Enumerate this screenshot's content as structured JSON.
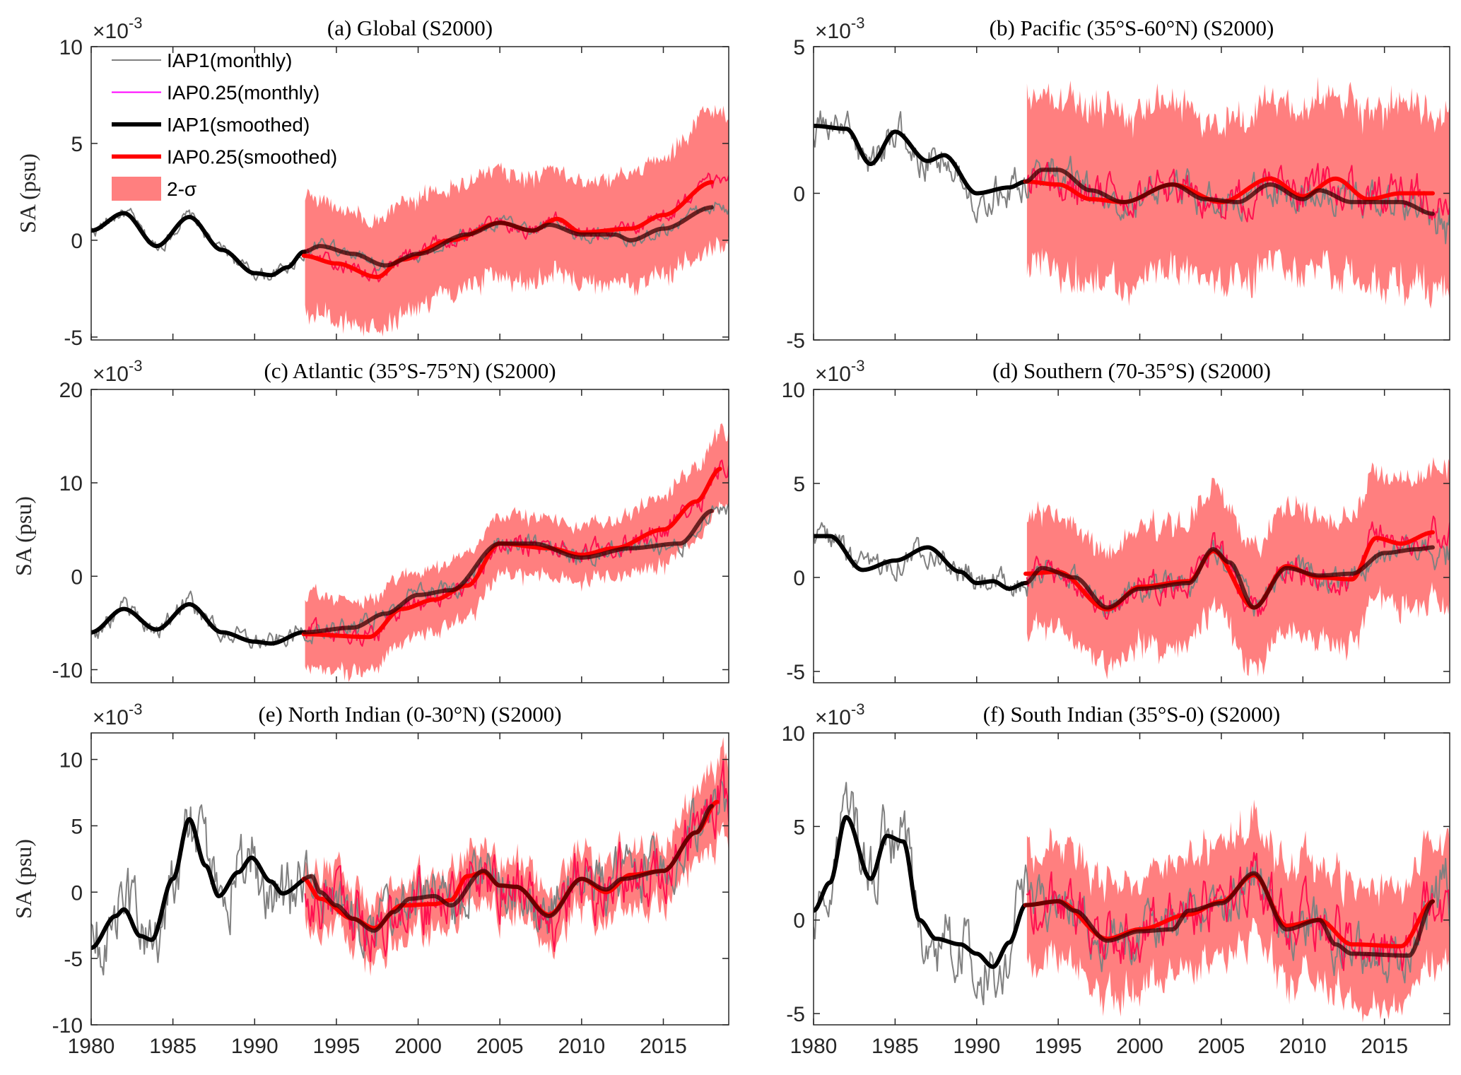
{
  "legend": {
    "entries": [
      {
        "label": "IAP1(monthly)",
        "color": "#808080",
        "kind": "thin"
      },
      {
        "label": "IAP0.25(monthly)",
        "color": "#ff00ff",
        "kind": "thin"
      },
      {
        "label": "IAP1(smoothed)",
        "color": "#000000",
        "kind": "thick"
      },
      {
        "label": "IAP0.25(smoothed)",
        "color": "#ff0000",
        "kind": "thick"
      },
      {
        "label": "2-σ",
        "color": "#ff7f7f",
        "kind": "patch"
      }
    ]
  },
  "colors": {
    "band": "#ff7f7f",
    "iap1_monthly": "#808080",
    "iap025_monthly": "#ff1050",
    "iap1_smoothed": "#000000",
    "iap025_smoothed": "#ff0000"
  },
  "chart_data": [
    {
      "type": "line",
      "title": "(a) Global (S2000)",
      "ylabel": "SA (psu)",
      "exponent": "×10",
      "exponent_power": "-3",
      "xlim": [
        1980,
        2019
      ],
      "ylim": [
        -5.15,
        10
      ],
      "yticks": [
        -5,
        0,
        5,
        10
      ],
      "xticks": [
        1980,
        1985,
        1990,
        1995,
        2000,
        2005,
        2010,
        2015
      ],
      "show_xticklabels": false,
      "legend": true,
      "noise": 0.35,
      "iap1_smoothed": [
        [
          1980,
          0.5
        ],
        [
          1982,
          1.4
        ],
        [
          1984,
          -0.3
        ],
        [
          1986,
          1.2
        ],
        [
          1988,
          -0.5
        ],
        [
          1990,
          -1.7
        ],
        [
          1991,
          -1.8
        ],
        [
          1992,
          -1.4
        ],
        [
          1993,
          -0.6
        ],
        [
          1994,
          -0.3
        ],
        [
          1996,
          -0.7
        ],
        [
          1998,
          -1.3
        ],
        [
          2000,
          -0.7
        ],
        [
          2003,
          0.3
        ],
        [
          2005,
          0.9
        ],
        [
          2007,
          0.5
        ],
        [
          2008,
          0.8
        ],
        [
          2010,
          0.3
        ],
        [
          2012,
          0.3
        ],
        [
          2013,
          0.0
        ],
        [
          2015,
          0.6
        ],
        [
          2018,
          1.7
        ]
      ],
      "iap025_smoothed": [
        [
          1993,
          -0.8
        ],
        [
          1995,
          -1.2
        ],
        [
          1997.5,
          -1.9
        ],
        [
          1999,
          -1.0
        ],
        [
          2002,
          0.0
        ],
        [
          2005,
          0.9
        ],
        [
          2007,
          0.5
        ],
        [
          2008.5,
          1.1
        ],
        [
          2010,
          0.4
        ],
        [
          2013,
          0.6
        ],
        [
          2015,
          1.3
        ],
        [
          2018,
          3.0
        ]
      ],
      "sigma": [
        [
          1993,
          3.0
        ],
        [
          2000,
          2.8
        ],
        [
          2010,
          2.6
        ],
        [
          2019,
          3.5
        ]
      ]
    },
    {
      "type": "line",
      "title": "(b) Pacific (35°S-60°N) (S2000)",
      "ylabel": "",
      "exponent": "×10",
      "exponent_power": "-3",
      "xlim": [
        1980,
        2019
      ],
      "ylim": [
        -5,
        5
      ],
      "yticks": [
        -5,
        0,
        5
      ],
      "xticks": [
        1980,
        1985,
        1990,
        1995,
        2000,
        2005,
        2010,
        2015
      ],
      "show_xticklabels": false,
      "legend": false,
      "noise": 0.6,
      "iap1_smoothed": [
        [
          1980,
          2.3
        ],
        [
          1982,
          2.2
        ],
        [
          1983.5,
          1.0
        ],
        [
          1985,
          2.1
        ],
        [
          1987,
          1.1
        ],
        [
          1988,
          1.3
        ],
        [
          1990,
          0.0
        ],
        [
          1992,
          0.2
        ],
        [
          1993,
          0.4
        ],
        [
          1994,
          0.8
        ],
        [
          1995,
          0.8
        ],
        [
          1997,
          0.1
        ],
        [
          1999,
          -0.3
        ],
        [
          2002,
          0.3
        ],
        [
          2004,
          -0.2
        ],
        [
          2006,
          -0.3
        ],
        [
          2008,
          0.3
        ],
        [
          2010,
          -0.2
        ],
        [
          2011,
          0.1
        ],
        [
          2013,
          -0.3
        ],
        [
          2016,
          -0.3
        ],
        [
          2018,
          -0.7
        ]
      ],
      "iap025_smoothed": [
        [
          1993,
          0.4
        ],
        [
          1995,
          0.3
        ],
        [
          1997,
          -0.2
        ],
        [
          1999,
          -0.3
        ],
        [
          2002,
          0.3
        ],
        [
          2005,
          -0.3
        ],
        [
          2008,
          0.5
        ],
        [
          2010,
          -0.1
        ],
        [
          2012,
          0.5
        ],
        [
          2014,
          -0.2
        ],
        [
          2016,
          0.0
        ],
        [
          2018,
          0.0
        ]
      ],
      "sigma": [
        [
          1993,
          3.0
        ],
        [
          2005,
          2.8
        ],
        [
          2019,
          3.0
        ]
      ]
    },
    {
      "type": "line",
      "title": "(c) Atlantic (35°S-75°N) (S2000)",
      "ylabel": "SA (psu)",
      "exponent": "×10",
      "exponent_power": "-3",
      "xlim": [
        1980,
        2019
      ],
      "ylim": [
        -11.4,
        20
      ],
      "yticks": [
        -10,
        0,
        10,
        20
      ],
      "xticks": [
        1980,
        1985,
        1990,
        1995,
        2000,
        2005,
        2010,
        2015
      ],
      "show_xticklabels": false,
      "legend": false,
      "noise": 1.0,
      "iap1_smoothed": [
        [
          1980,
          -6
        ],
        [
          1982,
          -3.5
        ],
        [
          1984,
          -5.7
        ],
        [
          1986,
          -3
        ],
        [
          1988,
          -6
        ],
        [
          1990,
          -7
        ],
        [
          1991,
          -7.2
        ],
        [
          1993,
          -6
        ],
        [
          1996,
          -5.5
        ],
        [
          1998,
          -4
        ],
        [
          2000,
          -2
        ],
        [
          2002,
          -1.5
        ],
        [
          2005,
          3.5
        ],
        [
          2007,
          3.5
        ],
        [
          2010,
          2.0
        ],
        [
          2013,
          3
        ],
        [
          2016,
          3.5
        ],
        [
          2018,
          7
        ]
      ],
      "iap025_smoothed": [
        [
          1993,
          -6.2
        ],
        [
          1997,
          -6.5
        ],
        [
          1999,
          -3.5
        ],
        [
          2001,
          -2.5
        ],
        [
          2003,
          -1
        ],
        [
          2005,
          3.5
        ],
        [
          2008,
          3
        ],
        [
          2010,
          2.3
        ],
        [
          2012,
          3
        ],
        [
          2015,
          5
        ],
        [
          2017,
          8
        ],
        [
          2018.5,
          11.5
        ]
      ],
      "sigma": [
        [
          1993,
          4.0
        ],
        [
          2000,
          3.5
        ],
        [
          2010,
          3.0
        ],
        [
          2019,
          4.0
        ]
      ]
    },
    {
      "type": "line",
      "title": "(d) Southern (70-35°S) (S2000)",
      "ylabel": "",
      "exponent": "×10",
      "exponent_power": "-3",
      "xlim": [
        1980,
        2019
      ],
      "ylim": [
        -5.6,
        10
      ],
      "yticks": [
        -5,
        0,
        5,
        10
      ],
      "xticks": [
        1980,
        1985,
        1990,
        1995,
        2000,
        2005,
        2010,
        2015
      ],
      "show_xticklabels": false,
      "legend": false,
      "noise": 0.7,
      "iap1_smoothed": [
        [
          1980,
          2.2
        ],
        [
          1981,
          2.2
        ],
        [
          1983,
          0.4
        ],
        [
          1985,
          0.9
        ],
        [
          1987,
          1.6
        ],
        [
          1989,
          0.3
        ],
        [
          1990,
          -0.3
        ],
        [
          1991,
          -0.2
        ],
        [
          1992,
          -0.6
        ],
        [
          1993,
          -0.3
        ],
        [
          1994,
          0.5
        ],
        [
          1996,
          0.0
        ],
        [
          1998,
          -1.6
        ],
        [
          2000,
          -0.6
        ],
        [
          2003,
          -0.3
        ],
        [
          2004.5,
          1.5
        ],
        [
          2005.5,
          0.8
        ],
        [
          2007,
          -1.6
        ],
        [
          2009,
          0.5
        ],
        [
          2011,
          0.1
        ],
        [
          2013,
          0.2
        ],
        [
          2015,
          1.3
        ],
        [
          2017,
          1.5
        ],
        [
          2018,
          1.6
        ]
      ],
      "iap025_smoothed": [
        [
          1993,
          0.2
        ],
        [
          1995,
          0.3
        ],
        [
          1998,
          -1.7
        ],
        [
          2000,
          -0.5
        ],
        [
          2003,
          -0.2
        ],
        [
          2004.5,
          1.4
        ],
        [
          2007,
          -1.6
        ],
        [
          2009,
          0.6
        ],
        [
          2011,
          0.0
        ],
        [
          2013,
          -0.1
        ],
        [
          2014.5,
          2.1
        ],
        [
          2016,
          1.8
        ],
        [
          2018,
          2.4
        ]
      ],
      "sigma": [
        [
          1993,
          3.0
        ],
        [
          2005,
          3.2
        ],
        [
          2019,
          3.5
        ]
      ]
    },
    {
      "type": "line",
      "title": "(e) North Indian (0-30°N)  (S2000)",
      "ylabel": "SA (psu)",
      "exponent": "×10",
      "exponent_power": "-3",
      "xlim": [
        1980,
        2019
      ],
      "ylim": [
        -10,
        12
      ],
      "yticks": [
        -10,
        -5,
        0,
        5,
        10
      ],
      "xticks": [
        1980,
        1985,
        1990,
        1995,
        2000,
        2005,
        2010,
        2015
      ],
      "show_xticklabels": true,
      "legend": false,
      "noise": 2.0,
      "iap1_smoothed": [
        [
          1980,
          -4.2
        ],
        [
          1981.5,
          -1.8
        ],
        [
          1982,
          -1.3
        ],
        [
          1983,
          -3.3
        ],
        [
          1983.7,
          -3.6
        ],
        [
          1985,
          1
        ],
        [
          1986,
          5.5
        ],
        [
          1987,
          2
        ],
        [
          1987.8,
          -0.3
        ],
        [
          1989,
          1.5
        ],
        [
          1989.8,
          2.6
        ],
        [
          1991,
          0.8
        ],
        [
          1991.7,
          -0.1
        ],
        [
          1993.5,
          1.2
        ],
        [
          1994,
          0
        ],
        [
          1995,
          -1
        ],
        [
          1996,
          -2
        ],
        [
          1997.3,
          -2.9
        ],
        [
          1998.5,
          -1.5
        ],
        [
          1999.5,
          -0.5
        ],
        [
          2001,
          -0.3
        ],
        [
          2002,
          -1
        ],
        [
          2004,
          1.6
        ],
        [
          2005,
          0.5
        ],
        [
          2006,
          0.4
        ],
        [
          2008,
          -1.8
        ],
        [
          2010,
          1.0
        ],
        [
          2011.5,
          0.2
        ],
        [
          2012.5,
          1.0
        ],
        [
          2015,
          1.6
        ],
        [
          2017,
          4.5
        ],
        [
          2018,
          6.5
        ]
      ],
      "iap025_smoothed": [
        [
          1993,
          1.0
        ],
        [
          1994,
          -0.5
        ],
        [
          1996,
          -2
        ],
        [
          1997.3,
          -2.7
        ],
        [
          1999,
          -1
        ],
        [
          2001,
          -0.9
        ],
        [
          2002,
          -0.6
        ],
        [
          2003,
          1.2
        ],
        [
          2004,
          1.5
        ],
        [
          2005,
          0.5
        ],
        [
          2006,
          0.4
        ],
        [
          2008,
          -1.7
        ],
        [
          2010,
          1.0
        ],
        [
          2011.5,
          0.0
        ],
        [
          2013,
          1.3
        ],
        [
          2015,
          1.6
        ],
        [
          2017,
          4.5
        ],
        [
          2018.3,
          6.8
        ]
      ],
      "sigma": [
        [
          1993,
          2.2
        ],
        [
          2005,
          2.0
        ],
        [
          2015,
          2.2
        ],
        [
          2019,
          3.0
        ]
      ]
    },
    {
      "type": "line",
      "title": "(f) South Indian (35°S-0)  (S2000)",
      "ylabel": "",
      "exponent": "×10",
      "exponent_power": "-3",
      "xlim": [
        1980,
        2019
      ],
      "ylim": [
        -5.6,
        10
      ],
      "yticks": [
        -5,
        0,
        5,
        10
      ],
      "xticks": [
        1980,
        1985,
        1990,
        1995,
        2000,
        2005,
        2010,
        2015
      ],
      "show_xticklabels": true,
      "legend": false,
      "noise": 1.3,
      "iap1_smoothed": [
        [
          1980,
          0.5
        ],
        [
          1981,
          2
        ],
        [
          1982,
          5.5
        ],
        [
          1983.5,
          2.2
        ],
        [
          1984.5,
          4.5
        ],
        [
          1985.5,
          4.2
        ],
        [
          1986.5,
          0
        ],
        [
          1987.5,
          -1
        ],
        [
          1989,
          -1.3
        ],
        [
          1990,
          -1.8
        ],
        [
          1991,
          -2.5
        ],
        [
          1992,
          -1.2
        ],
        [
          1993,
          0.8
        ],
        [
          1995,
          1
        ],
        [
          1996,
          0.5
        ],
        [
          1998,
          -1.1
        ],
        [
          2000,
          -0.6
        ],
        [
          2002,
          -0.5
        ],
        [
          2003,
          0.5
        ],
        [
          2005,
          0.9
        ],
        [
          2007,
          2.5
        ],
        [
          2009,
          -0.5
        ],
        [
          2011,
          0.0
        ],
        [
          2012,
          -1.3
        ],
        [
          2013,
          -1.8
        ],
        [
          2016.5,
          -1.9
        ],
        [
          2018,
          1.0
        ]
      ],
      "iap025_smoothed": [
        [
          1993,
          0.8
        ],
        [
          1995,
          1.0
        ],
        [
          1998,
          -1.0
        ],
        [
          2000,
          -0.5
        ],
        [
          2003,
          0.3
        ],
        [
          2005,
          1
        ],
        [
          2007,
          2.4
        ],
        [
          2009,
          -0.3
        ],
        [
          2011,
          0.0
        ],
        [
          2013,
          -1.3
        ],
        [
          2016,
          -1.4
        ],
        [
          2018,
          1.0
        ]
      ],
      "sigma": [
        [
          1993,
          3.0
        ],
        [
          2005,
          3.0
        ],
        [
          2019,
          3.2
        ]
      ]
    }
  ]
}
